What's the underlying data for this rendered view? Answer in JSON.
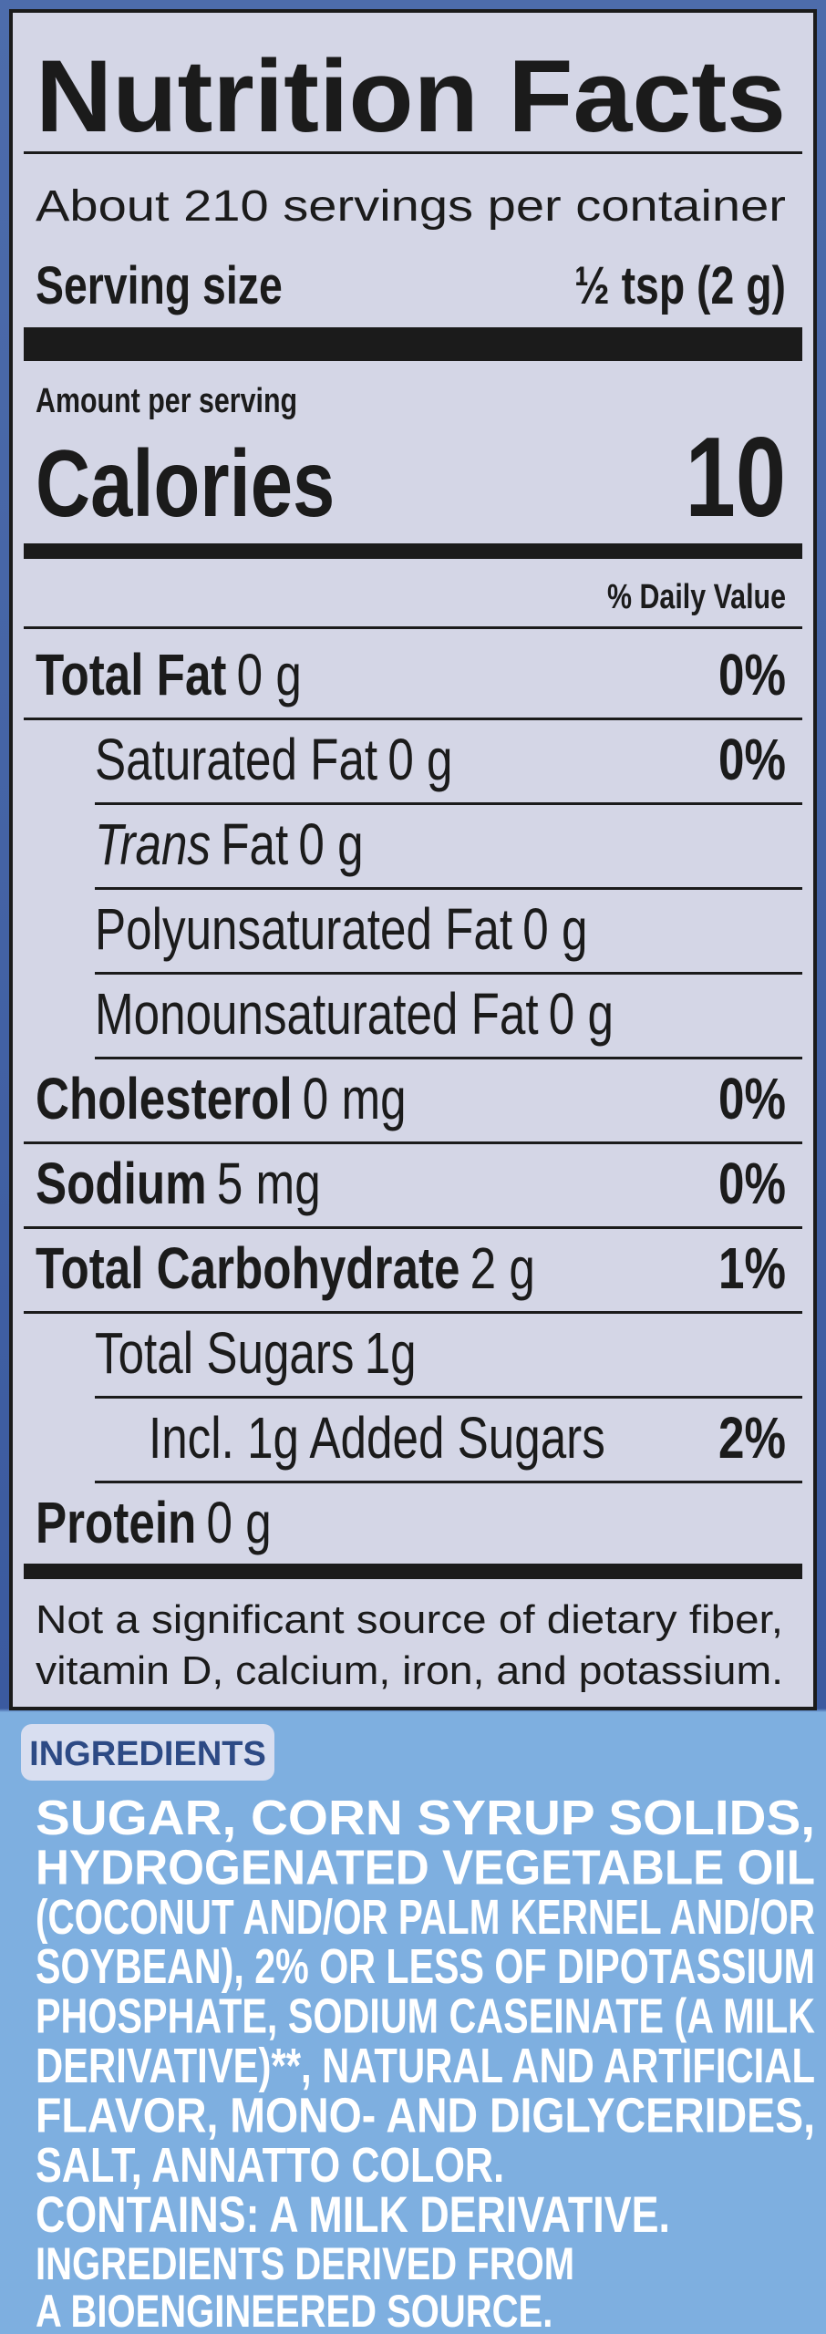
{
  "header": {
    "title": "Nutrition Facts",
    "servings": "About 210 servings per container",
    "serving_size_label": "Serving size",
    "serving_size_value": "½ tsp (2 g)"
  },
  "calories": {
    "amount_per_serving": "Amount per serving",
    "label": "Calories",
    "value": "10"
  },
  "daily_value_header": "% Daily Value",
  "rows": [
    {
      "label": "Total Fat",
      "amount": "0 g",
      "dv": "0%"
    },
    {
      "label": "Saturated Fat",
      "amount": "0 g",
      "dv": "0%"
    },
    {
      "label_italic": "Trans",
      "label": "Fat",
      "amount": "0 g"
    },
    {
      "label": "Polyunsaturated Fat",
      "amount": "0 g"
    },
    {
      "label": "Monounsaturated Fat",
      "amount": "0 g"
    },
    {
      "label": "Cholesterol",
      "amount": "0 mg",
      "dv": "0%"
    },
    {
      "label": "Sodium",
      "amount": "5 mg",
      "dv": "0%"
    },
    {
      "label": "Total Carbohydrate",
      "amount": "2 g",
      "dv": "1%"
    },
    {
      "label": "Total Sugars",
      "amount": "1g"
    },
    {
      "label": "Incl. 1g Added Sugars",
      "dv": "2%"
    },
    {
      "label": "Protein",
      "amount": "0 g"
    }
  ],
  "footnote": [
    "Not a significant source of dietary fiber,",
    "vitamin D, calcium, iron, and potassium."
  ],
  "ingredients": {
    "header": "INGREDIENTS",
    "lines": [
      "SUGAR, CORN SYRUP SOLIDS,",
      "HYDROGENATED VEGETABLE OIL",
      "(COCONUT AND/OR PALM KERNEL AND/OR",
      "SOYBEAN), 2% OR LESS OF DIPOTASSIUM",
      "PHOSPHATE, SODIUM CASEINATE (A MILK",
      "DERIVATIVE)**, NATURAL AND ARTIFICIAL",
      "FLAVOR, MONO- AND DIGLYCERIDES,",
      "SALT, ANNATTO COLOR."
    ],
    "contains": "CONTAINS: A MILK DERIVATIVE.",
    "bioengineered": [
      "INGREDIENTS DERIVED FROM",
      "A BIOENGINEERED SOURCE."
    ]
  }
}
